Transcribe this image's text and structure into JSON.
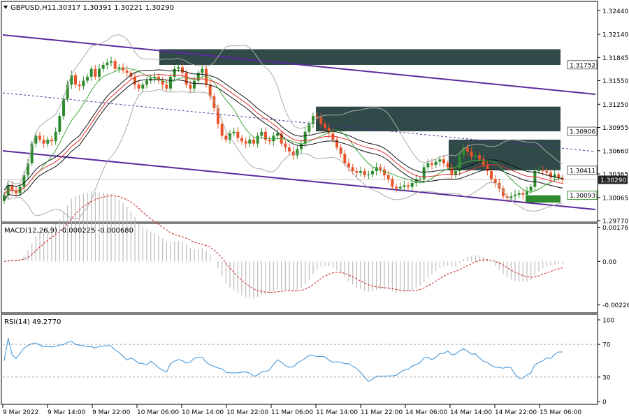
{
  "header": {
    "symbol": "GBPUSD,H1",
    "ohlc": "1.30317 1.30391 1.30221 1.30290"
  },
  "chart_data": {
    "type": "line",
    "main": {
      "ylim": [
        1.2977,
        1.3254
      ],
      "y_ticks": [
        "1.32440",
        "1.32140",
        "1.31845",
        "1.31550",
        "1.31250",
        "1.30955",
        "1.30660",
        "1.30365",
        "1.30065",
        "1.29770"
      ],
      "current_price": "1.30290",
      "level_labels": [
        "1.31752",
        "1.30906",
        "1.30411",
        "1.30093"
      ],
      "price_series": [
        1.301,
        1.3022,
        1.3015,
        1.3012,
        1.302,
        1.3035,
        1.305,
        1.3075,
        1.3085,
        1.308,
        1.3075,
        1.308,
        1.3078,
        1.309,
        1.311,
        1.3132,
        1.315,
        1.3162,
        1.315,
        1.3148,
        1.3155,
        1.316,
        1.317,
        1.316,
        1.317,
        1.3175,
        1.3178,
        1.318,
        1.317,
        1.3172,
        1.3168,
        1.3165,
        1.316,
        1.315,
        1.3145,
        1.315,
        1.3155,
        1.3158,
        1.316,
        1.3155,
        1.315,
        1.3145,
        1.316,
        1.317,
        1.3172,
        1.3165,
        1.315,
        1.3145,
        1.3155,
        1.3165,
        1.317,
        1.315,
        1.3135,
        1.312,
        1.31,
        1.3085,
        1.308,
        1.3088,
        1.309,
        1.3082,
        1.3078,
        1.3075,
        1.308,
        1.3075,
        1.3085,
        1.309,
        1.308,
        1.3078,
        1.3085,
        1.3088,
        1.3075,
        1.307,
        1.3065,
        1.306,
        1.3068,
        1.3075,
        1.309,
        1.31,
        1.311,
        1.3108,
        1.31,
        1.3095,
        1.3088,
        1.308,
        1.307,
        1.3062,
        1.305,
        1.3045,
        1.304,
        1.3038,
        1.304,
        1.3035,
        1.3036,
        1.304,
        1.3045,
        1.3042,
        1.3035,
        1.303,
        1.302,
        1.3018,
        1.302,
        1.3022,
        1.302,
        1.3025,
        1.303,
        1.303,
        1.3045,
        1.305,
        1.3048,
        1.3052,
        1.3055,
        1.305,
        1.3045,
        1.3035,
        1.304,
        1.306,
        1.307,
        1.3065,
        1.3058,
        1.306,
        1.3055,
        1.3048,
        1.304,
        1.303,
        1.3025,
        1.3018,
        1.3008,
        1.3006,
        1.3008,
        1.301,
        1.3012,
        1.301,
        1.3015,
        1.302,
        1.304,
        1.3041,
        1.304,
        1.3038,
        1.3032,
        1.3036,
        1.3031,
        1.3029
      ]
    },
    "macd": {
      "label": "MACD(12,26,9) -0.000225 -0.000680",
      "y_ticks": [
        "0.001767",
        "0.00",
        "-0.00226"
      ],
      "ylim": [
        -0.0026,
        0.0019
      ]
    },
    "rsi": {
      "label": "RSI(14) 49.2770",
      "y_ticks": [
        "100",
        "70",
        "30",
        "0"
      ],
      "ylim": [
        0,
        100
      ],
      "levels": [
        70,
        30
      ]
    },
    "x_ticks": [
      "9 Mar 2022",
      "9 Mar 14:00",
      "9 Mar 22:00",
      "10 Mar 06:00",
      "10 Mar 14:00",
      "10 Mar 22:00",
      "11 Mar 06:00",
      "11 Mar 14:00",
      "11 Mar 22:00",
      "14 Mar 06:00",
      "14 Mar 14:00",
      "14 Mar 22:00",
      "15 Mar 06:00"
    ]
  },
  "colors": {
    "bull": "#2e8b2e",
    "bear": "#e8552a",
    "channel": "#5b2a9e",
    "zone": "#2f4a48",
    "zone_green": "#2e8b2e",
    "ma_red": "#e03030",
    "ma_green": "#3faa3f",
    "ma_black": "#111111",
    "band": "#aaaaaa",
    "macd_hist": "#bbbbbb",
    "macd_signal": "#cc2222",
    "rsi_line": "#3a8fd6",
    "price_tag_bg": "#222222"
  }
}
